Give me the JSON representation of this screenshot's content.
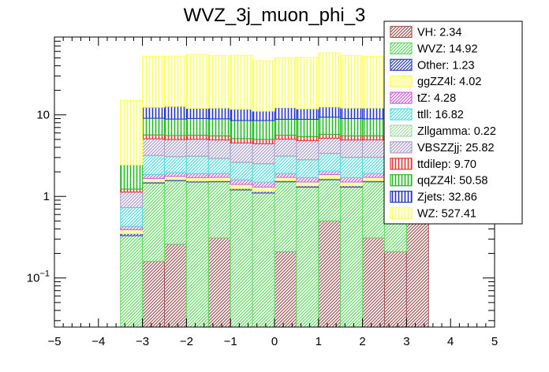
{
  "chart_data": {
    "type": "bar",
    "subtype": "stacked-histogram",
    "title": "WVZ_3j_muon_phi_3",
    "xlabel": "",
    "ylabel": "",
    "y_scale": "log",
    "xlim": [
      -5,
      5
    ],
    "ylim": [
      0.025,
      90
    ],
    "bin_edges": [
      -3.5,
      -3.0,
      -2.5,
      -2.0,
      -1.5,
      -1.0,
      -0.5,
      0.0,
      0.5,
      1.0,
      1.5,
      2.0,
      2.5,
      3.0,
      3.5
    ],
    "x_ticks": [
      -5,
      -4,
      -3,
      -2,
      -1,
      0,
      1,
      2,
      3,
      4,
      5
    ],
    "x_tick_labels": [
      "−5",
      "−4",
      "−3",
      "−2",
      "−1",
      "0",
      "1",
      "2",
      "3",
      "4",
      "5"
    ],
    "y_ticks": [
      0.1,
      1,
      10
    ],
    "y_tick_labels": [
      {
        "base": "10",
        "exp": "−1"
      },
      {
        "base": "1",
        "exp": ""
      },
      {
        "base": "10",
        "exp": ""
      }
    ],
    "legend_position": "top-right",
    "series": [
      {
        "name": "VH: 2.34",
        "color": "#a05a5a",
        "hatch": "diag",
        "values": [
          0,
          0.16,
          0.26,
          0,
          0.31,
          0,
          0,
          0.21,
          0,
          0.5,
          0,
          0.31,
          0.21,
          0.5
        ]
      },
      {
        "name": "WVZ: 14.92",
        "color": "#66dd66",
        "hatch": "diag",
        "values": [
          0.33,
          1.3,
          1.3,
          1.5,
          1.2,
          1.2,
          1.1,
          1.3,
          1.3,
          1.1,
          1.3,
          1.2,
          1.3,
          1.1
        ]
      },
      {
        "name": "Other: 1.23",
        "color": "#3344bb",
        "hatch": "diag",
        "values": [
          0.02,
          0.05,
          0.05,
          0.05,
          0.05,
          0.05,
          0.05,
          0.05,
          0.05,
          0.05,
          0.05,
          0.05,
          0.05,
          0.05
        ]
      },
      {
        "name": "ggZZ4l: 4.02",
        "color": "#ffff55",
        "hatch": "diag",
        "values": [
          0.04,
          0.15,
          0.15,
          0.15,
          0.15,
          0.15,
          0.15,
          0.15,
          0.15,
          0.2,
          0.15,
          0.15,
          0.15,
          0.15
        ]
      },
      {
        "name": "tZ: 4.28",
        "color": "#cc66dd",
        "hatch": "diag",
        "values": [
          0.04,
          0.2,
          0.2,
          0.2,
          0.2,
          0.2,
          0.2,
          0.2,
          0.2,
          0.2,
          0.2,
          0.2,
          0.2,
          0.2
        ]
      },
      {
        "name": "ttll: 16.82",
        "color": "#55dddd",
        "hatch": "diag",
        "values": [
          0.3,
          1.3,
          1.1,
          1.2,
          1.0,
          1.0,
          1.0,
          1.2,
          1.1,
          1.3,
          1.3,
          1.1,
          1.2,
          1.1
        ]
      },
      {
        "name": "Zllgamma: 0.22",
        "color": "#aaddaa",
        "hatch": "diag",
        "values": [
          0.0,
          0.02,
          0.02,
          0.02,
          0.02,
          0.02,
          0.02,
          0.02,
          0.02,
          0.02,
          0.02,
          0.02,
          0.02,
          0.02
        ]
      },
      {
        "name": "VBSZZjj: 25.82",
        "color": "#aaa0cc",
        "hatch": "diag",
        "values": [
          0.4,
          1.9,
          1.9,
          1.9,
          2.0,
          1.9,
          1.9,
          1.9,
          2.0,
          1.8,
          1.9,
          1.9,
          2.0,
          1.9
        ]
      },
      {
        "name": "ttdilep: 9.70",
        "color": "#ee3333",
        "hatch": "vert",
        "values": [
          0.1,
          0.6,
          0.6,
          0.6,
          0.6,
          0.6,
          0.6,
          0.6,
          0.6,
          0.6,
          0.6,
          0.6,
          0.6,
          0.6
        ]
      },
      {
        "name": "qqZZ4l: 50.58",
        "color": "#22bb22",
        "hatch": "vert",
        "values": [
          1.2,
          3.4,
          3.3,
          3.4,
          3.4,
          3.4,
          3.5,
          3.2,
          3.4,
          3.6,
          3.5,
          3.4,
          3.5,
          3.4
        ]
      },
      {
        "name": "Zjets: 32.86",
        "color": "#2233cc",
        "hatch": "vert",
        "values": [
          0.0,
          3.3,
          3.8,
          3.0,
          3.2,
          3.2,
          2.6,
          3.4,
          3.0,
          3.1,
          3.1,
          3.2,
          3.2,
          3.3
        ]
      },
      {
        "name": "WZ: 527.41",
        "color": "#ffff66",
        "hatch": "vert",
        "values": [
          12.6,
          40.0,
          40.0,
          43.0,
          41.0,
          42.0,
          35.0,
          38.0,
          39.0,
          45.0,
          41.0,
          40.0,
          42.0,
          43.0
        ]
      }
    ]
  }
}
